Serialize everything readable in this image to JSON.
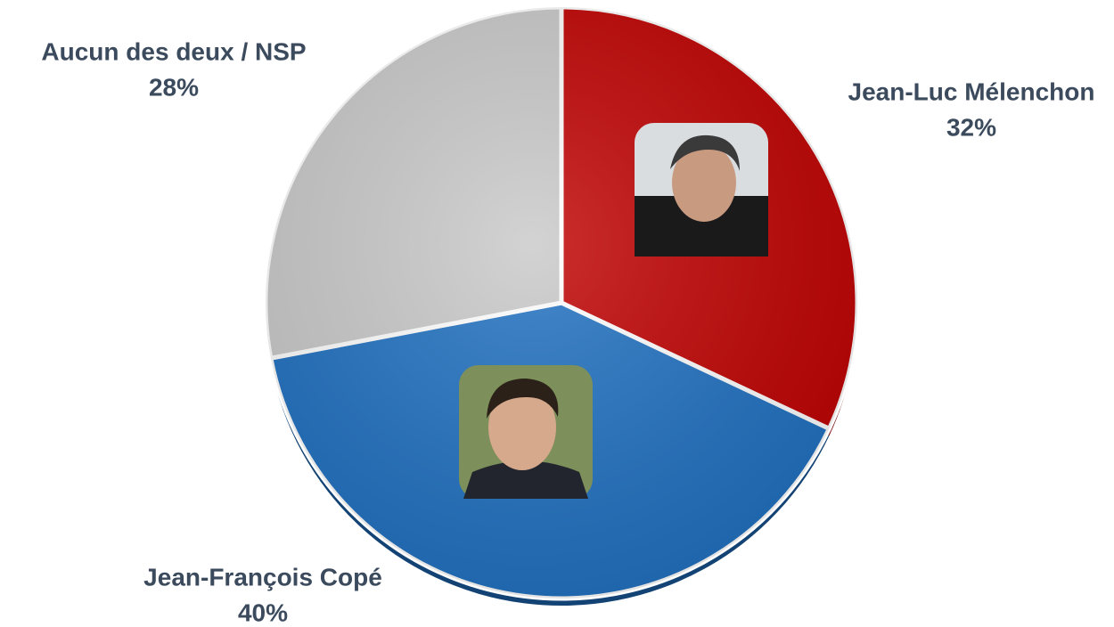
{
  "chart_data": {
    "type": "pie",
    "categories": [
      "Jean-Luc Mélenchon",
      "Jean-François Copé",
      "Aucun des deux / NSP"
    ],
    "values": [
      32,
      40,
      28
    ],
    "value_labels": [
      "32%",
      "40%",
      "28%"
    ],
    "colors": [
      "#c00000",
      "#1f70c1",
      "#c9c9c9"
    ]
  }
}
